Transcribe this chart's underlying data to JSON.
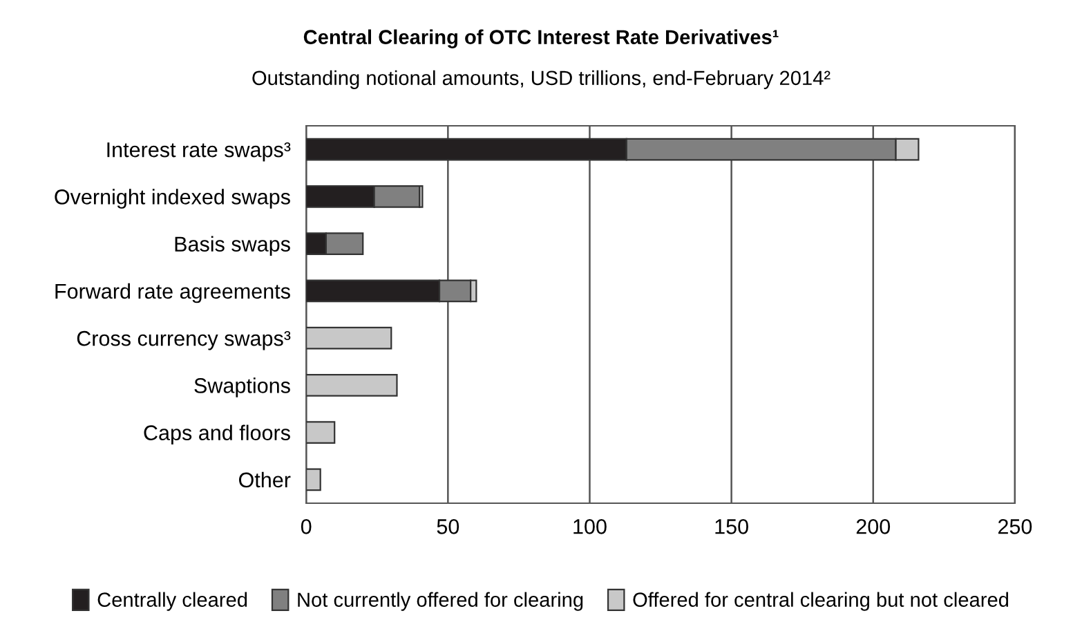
{
  "chart_data": {
    "type": "bar",
    "orientation": "horizontal",
    "stacked": true,
    "title": "Central Clearing of OTC Interest Rate Derivatives¹",
    "subtitle": "Outstanding notional amounts, USD trillions, end-February 2014²",
    "categories": [
      "Interest rate swaps³",
      "Overnight indexed swaps",
      "Basis swaps",
      "Forward rate agreements",
      "Cross currency swaps³",
      "Swaptions",
      "Caps and floors",
      "Other"
    ],
    "series": [
      {
        "name": "Centrally cleared",
        "color": "#231f20",
        "values": [
          113,
          24,
          7,
          47,
          0,
          0,
          0,
          0
        ]
      },
      {
        "name": "Not currently offered for clearing",
        "color": "#808080",
        "values": [
          95,
          16,
          13,
          11,
          0,
          0,
          0,
          0
        ]
      },
      {
        "name": "Offered for central clearing but not cleared",
        "color": "#c8c8c8",
        "values": [
          8,
          1,
          0,
          2,
          30,
          32,
          10,
          5
        ]
      }
    ],
    "xlim": [
      0,
      250
    ],
    "xticks": [
      0,
      50,
      100,
      150,
      200,
      250
    ],
    "grid": "x",
    "legend": "bottom"
  }
}
